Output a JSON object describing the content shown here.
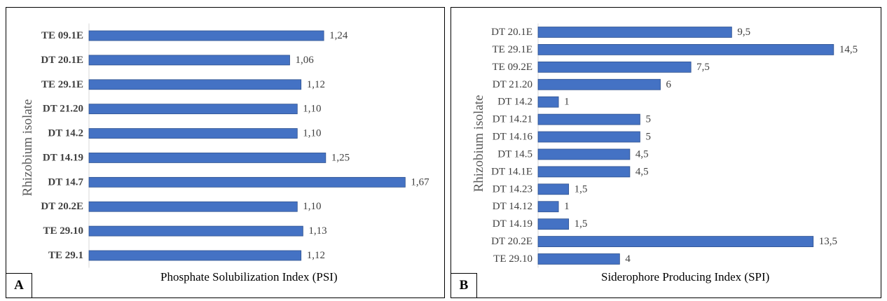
{
  "chart_data": [
    {
      "type": "bar",
      "orientation": "horizontal",
      "panel_label": "A",
      "categories": [
        "TE 09.1E",
        "DT 20.1E",
        "TE 29.1E",
        "DT 21.20",
        "DT 14.2",
        "DT 14.19",
        "DT 14.7",
        "DT 20.2E",
        "TE 29.10",
        "TE 29.1"
      ],
      "values": [
        1.24,
        1.06,
        1.12,
        1.1,
        1.1,
        1.25,
        1.67,
        1.1,
        1.13,
        1.12
      ],
      "value_labels": [
        "1,24",
        "1,06",
        "1,12",
        "1,10",
        "1,10",
        "1,25",
        "1,67",
        "1,10",
        "1,13",
        "1,12"
      ],
      "xlabel": "Phosphate Solubilization Index (PSI)",
      "ylabel": "Rhizobium isolate",
      "xlim": [
        0,
        1.85
      ],
      "grid": false,
      "bar_color": "#4472c4",
      "category_label_style": "bold"
    },
    {
      "type": "bar",
      "orientation": "horizontal",
      "panel_label": "B",
      "categories": [
        "DT 20.1E",
        "TE 29.1E",
        "TE 09.2E",
        "DT 21.20",
        "DT 14.2",
        "DT 14.21",
        "DT 14.16",
        "DT 14.5",
        "DT 14.1E",
        "DT 14.23",
        "DT 14.12",
        "DT 14.19",
        "DT 20.2E",
        "TE 29.10"
      ],
      "values": [
        9.5,
        14.5,
        7.5,
        6,
        1,
        5,
        5,
        4.5,
        4.5,
        1.5,
        1,
        1.5,
        13.5,
        4
      ],
      "value_labels": [
        "9,5",
        "14,5",
        "7,5",
        "6",
        "1",
        "5",
        "5",
        "4,5",
        "4,5",
        "1,5",
        "1",
        "1,5",
        "13,5",
        "4"
      ],
      "xlabel": "Siderophore Producing Index (SPI)",
      "ylabel": "Rhizobium isolate",
      "xlim": [
        0,
        16.5
      ],
      "grid": false,
      "bar_color": "#4472c4",
      "category_label_style": "normal"
    }
  ]
}
